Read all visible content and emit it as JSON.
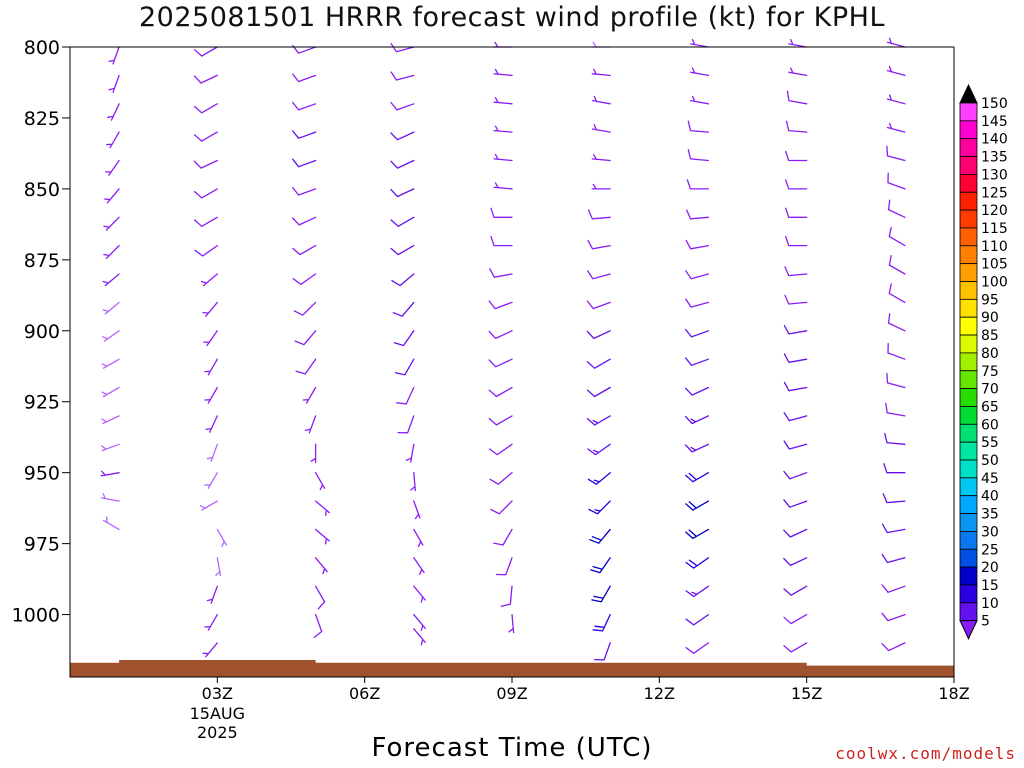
{
  "chart_data": {
    "type": "wind-barb-time-height",
    "title": "2025081501 HRRR forecast wind profile (kt) for KPHL",
    "xlabel": "Forecast Time (UTC)",
    "ylabel": "",
    "y_axis": {
      "scale": "pressure (hPa)",
      "ticks": [
        800,
        825,
        850,
        875,
        900,
        925,
        950,
        975,
        1000
      ],
      "range": [
        800,
        1022
      ],
      "inverted": true
    },
    "x_axis": {
      "range_hours": [
        0,
        18
      ],
      "ticks": [
        {
          "hour": 3,
          "label": "03Z",
          "sublabel": "15AUG",
          "sublabel2": "2025"
        },
        {
          "hour": 6,
          "label": "06Z",
          "sublabel": "",
          "sublabel2": ""
        },
        {
          "hour": 9,
          "label": "09Z",
          "sublabel": "",
          "sublabel2": ""
        },
        {
          "hour": 12,
          "label": "12Z",
          "sublabel": "",
          "sublabel2": ""
        },
        {
          "hour": 15,
          "label": "15Z",
          "sublabel": "",
          "sublabel2": ""
        },
        {
          "hour": 18,
          "label": "18Z",
          "sublabel": "",
          "sublabel2": ""
        }
      ]
    },
    "series": [
      {
        "hour": 1,
        "surface_hpa": 1017,
        "winds": [
          [
            800,
            200,
            5
          ],
          [
            810,
            200,
            6
          ],
          [
            820,
            205,
            6
          ],
          [
            830,
            210,
            6
          ],
          [
            840,
            215,
            5
          ],
          [
            850,
            220,
            5
          ],
          [
            860,
            225,
            5
          ],
          [
            870,
            225,
            5
          ],
          [
            880,
            230,
            5
          ],
          [
            890,
            230,
            4
          ],
          [
            900,
            235,
            4
          ],
          [
            910,
            240,
            4
          ],
          [
            920,
            240,
            4
          ],
          [
            930,
            245,
            4
          ],
          [
            940,
            250,
            4
          ],
          [
            950,
            260,
            5
          ],
          [
            960,
            280,
            4
          ],
          [
            970,
            300,
            3
          ]
        ]
      },
      {
        "hour": 3,
        "surface_hpa": 1012,
        "winds": [
          [
            800,
            240,
            8
          ],
          [
            810,
            245,
            9
          ],
          [
            820,
            240,
            9
          ],
          [
            830,
            240,
            9
          ],
          [
            840,
            245,
            9
          ],
          [
            850,
            240,
            8
          ],
          [
            860,
            240,
            8
          ],
          [
            870,
            235,
            8
          ],
          [
            880,
            230,
            7
          ],
          [
            890,
            220,
            7
          ],
          [
            900,
            215,
            7
          ],
          [
            910,
            210,
            7
          ],
          [
            920,
            210,
            6
          ],
          [
            930,
            205,
            5
          ],
          [
            940,
            200,
            4
          ],
          [
            950,
            210,
            3
          ],
          [
            960,
            240,
            3
          ],
          [
            970,
            150,
            3
          ],
          [
            980,
            170,
            4
          ],
          [
            990,
            200,
            5
          ],
          [
            1000,
            210,
            6
          ],
          [
            1010,
            220,
            5
          ]
        ]
      },
      {
        "hour": 5,
        "surface_hpa": 1010,
        "winds": [
          [
            800,
            250,
            9
          ],
          [
            810,
            250,
            9
          ],
          [
            820,
            250,
            9
          ],
          [
            830,
            250,
            10
          ],
          [
            840,
            250,
            10
          ],
          [
            850,
            250,
            9
          ],
          [
            860,
            245,
            9
          ],
          [
            870,
            240,
            9
          ],
          [
            880,
            235,
            8
          ],
          [
            890,
            225,
            8
          ],
          [
            900,
            220,
            8
          ],
          [
            910,
            215,
            8
          ],
          [
            920,
            210,
            7
          ],
          [
            930,
            200,
            6
          ],
          [
            940,
            180,
            5
          ],
          [
            950,
            150,
            5
          ],
          [
            960,
            130,
            6
          ],
          [
            970,
            130,
            6
          ],
          [
            980,
            140,
            7
          ],
          [
            990,
            150,
            8
          ],
          [
            1000,
            160,
            8
          ],
          [
            1010,
            170,
            8
          ]
        ]
      },
      {
        "hour": 7,
        "surface_hpa": 1008,
        "winds": [
          [
            800,
            255,
            9
          ],
          [
            810,
            255,
            9
          ],
          [
            820,
            250,
            9
          ],
          [
            830,
            245,
            10
          ],
          [
            840,
            245,
            10
          ],
          [
            850,
            245,
            10
          ],
          [
            860,
            240,
            10
          ],
          [
            870,
            240,
            10
          ],
          [
            880,
            230,
            10
          ],
          [
            890,
            220,
            10
          ],
          [
            900,
            215,
            10
          ],
          [
            910,
            210,
            10
          ],
          [
            920,
            205,
            9
          ],
          [
            930,
            200,
            8
          ],
          [
            940,
            190,
            7
          ],
          [
            950,
            175,
            6
          ],
          [
            960,
            160,
            6
          ],
          [
            970,
            150,
            6
          ],
          [
            980,
            145,
            6
          ],
          [
            990,
            140,
            6
          ],
          [
            1000,
            140,
            6
          ],
          [
            1005,
            140,
            6
          ]
        ]
      },
      {
        "hour": 9,
        "surface_hpa": 1011,
        "winds": [
          [
            800,
            270,
            6
          ],
          [
            810,
            275,
            7
          ],
          [
            820,
            275,
            7
          ],
          [
            830,
            275,
            7
          ],
          [
            840,
            275,
            7
          ],
          [
            850,
            275,
            7
          ],
          [
            860,
            270,
            8
          ],
          [
            870,
            270,
            8
          ],
          [
            880,
            260,
            8
          ],
          [
            890,
            250,
            9
          ],
          [
            900,
            245,
            9
          ],
          [
            910,
            245,
            9
          ],
          [
            920,
            240,
            9
          ],
          [
            930,
            240,
            9
          ],
          [
            940,
            235,
            9
          ],
          [
            950,
            230,
            9
          ],
          [
            960,
            225,
            9
          ],
          [
            970,
            210,
            9
          ],
          [
            980,
            200,
            9
          ],
          [
            990,
            185,
            8
          ],
          [
            1000,
            175,
            7
          ],
          [
            1010,
            160,
            6
          ]
        ]
      },
      {
        "hour": 11,
        "surface_hpa": 1013,
        "winds": [
          [
            800,
            270,
            4
          ],
          [
            810,
            275,
            5
          ],
          [
            820,
            280,
            5
          ],
          [
            830,
            280,
            6
          ],
          [
            840,
            275,
            7
          ],
          [
            850,
            270,
            7
          ],
          [
            860,
            265,
            8
          ],
          [
            870,
            260,
            8
          ],
          [
            880,
            255,
            8
          ],
          [
            890,
            250,
            9
          ],
          [
            900,
            245,
            10
          ],
          [
            910,
            240,
            11
          ],
          [
            920,
            240,
            12
          ],
          [
            930,
            240,
            13
          ],
          [
            940,
            235,
            14
          ],
          [
            950,
            230,
            16
          ],
          [
            960,
            225,
            17
          ],
          [
            970,
            220,
            20
          ],
          [
            980,
            215,
            22
          ],
          [
            990,
            210,
            22
          ],
          [
            1000,
            205,
            18
          ],
          [
            1010,
            200,
            10
          ]
        ]
      },
      {
        "hour": 13,
        "surface_hpa": 1014,
        "winds": [
          [
            800,
            280,
            5
          ],
          [
            810,
            280,
            6
          ],
          [
            820,
            280,
            7
          ],
          [
            830,
            275,
            8
          ],
          [
            840,
            275,
            9
          ],
          [
            850,
            270,
            9
          ],
          [
            860,
            265,
            9
          ],
          [
            870,
            260,
            9
          ],
          [
            880,
            255,
            9
          ],
          [
            890,
            255,
            9
          ],
          [
            900,
            250,
            10
          ],
          [
            910,
            250,
            10
          ],
          [
            920,
            245,
            11
          ],
          [
            930,
            245,
            13
          ],
          [
            940,
            245,
            14
          ],
          [
            950,
            240,
            18
          ],
          [
            960,
            240,
            21
          ],
          [
            970,
            240,
            20
          ],
          [
            980,
            235,
            18
          ],
          [
            990,
            235,
            14
          ],
          [
            1000,
            235,
            12
          ],
          [
            1010,
            235,
            9
          ]
        ]
      },
      {
        "hour": 15,
        "surface_hpa": 1015,
        "winds": [
          [
            800,
            280,
            6
          ],
          [
            810,
            280,
            7
          ],
          [
            820,
            280,
            8
          ],
          [
            830,
            275,
            8
          ],
          [
            840,
            270,
            8
          ],
          [
            850,
            270,
            8
          ],
          [
            860,
            270,
            8
          ],
          [
            870,
            270,
            9
          ],
          [
            880,
            265,
            9
          ],
          [
            890,
            265,
            9
          ],
          [
            900,
            260,
            10
          ],
          [
            910,
            260,
            10
          ],
          [
            920,
            260,
            11
          ],
          [
            930,
            255,
            11
          ],
          [
            940,
            255,
            12
          ],
          [
            950,
            250,
            12
          ],
          [
            960,
            250,
            12
          ],
          [
            970,
            245,
            11
          ],
          [
            980,
            245,
            10
          ],
          [
            990,
            240,
            10
          ],
          [
            1000,
            240,
            9
          ],
          [
            1010,
            240,
            9
          ]
        ]
      },
      {
        "hour": 17,
        "surface_hpa": 1015,
        "winds": [
          [
            800,
            285,
            6
          ],
          [
            810,
            285,
            6
          ],
          [
            820,
            285,
            7
          ],
          [
            830,
            285,
            7
          ],
          [
            840,
            285,
            8
          ],
          [
            850,
            290,
            8
          ],
          [
            860,
            295,
            8
          ],
          [
            870,
            300,
            9
          ],
          [
            880,
            300,
            9
          ],
          [
            890,
            300,
            9
          ],
          [
            900,
            295,
            9
          ],
          [
            910,
            290,
            9
          ],
          [
            920,
            285,
            9
          ],
          [
            930,
            280,
            9
          ],
          [
            940,
            275,
            10
          ],
          [
            950,
            270,
            10
          ],
          [
            960,
            265,
            10
          ],
          [
            970,
            260,
            10
          ],
          [
            980,
            255,
            10
          ],
          [
            990,
            250,
            9
          ],
          [
            1000,
            250,
            8
          ],
          [
            1010,
            245,
            8
          ]
        ]
      }
    ],
    "terrain": [
      [
        0,
        1017
      ],
      [
        1,
        1017
      ],
      [
        1,
        1016
      ],
      [
        5,
        1016
      ],
      [
        5,
        1017
      ],
      [
        15,
        1017
      ],
      [
        15,
        1018
      ],
      [
        18,
        1018
      ]
    ],
    "colorbar": {
      "unit": "kt",
      "levels": [
        5,
        10,
        15,
        20,
        25,
        30,
        35,
        40,
        45,
        50,
        55,
        60,
        65,
        70,
        75,
        80,
        85,
        90,
        95,
        100,
        105,
        110,
        115,
        120,
        125,
        130,
        135,
        140,
        145,
        150
      ],
      "colors": [
        "#8a1cf5",
        "#6410f0",
        "#2a00e0",
        "#0000c8",
        "#0050e6",
        "#0a78f0",
        "#0a96f0",
        "#00a8ff",
        "#00c8f0",
        "#00e0c8",
        "#00e6a0",
        "#00e070",
        "#00dc32",
        "#28dc00",
        "#64e600",
        "#a0f000",
        "#dcfa00",
        "#ffff00",
        "#ffe000",
        "#ffc000",
        "#ffa000",
        "#ff8000",
        "#ff6000",
        "#ff3c00",
        "#ff2000",
        "#ff0030",
        "#ff0070",
        "#ff00a0",
        "#ff00d0",
        "#ff40ff"
      ],
      "under_color": "#b464ff",
      "over_color": "#000000"
    }
  },
  "credit": "coolwx.com/models",
  "colors": {
    "terrain": "#a0522d",
    "frame": "#000000"
  }
}
